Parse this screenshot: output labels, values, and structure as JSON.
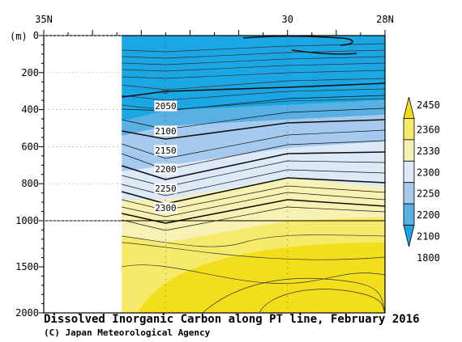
{
  "chart_data": {
    "type": "heatmap",
    "title": "Dissolved Inorganic Carbon along PT line, February 2016",
    "credit": "(C) Japan Meteorological Agency",
    "y_unit_label": "(m)",
    "x_axis": {
      "range": [
        35,
        28
      ],
      "tick_labels": [
        {
          "value": 35,
          "text": "35N"
        },
        {
          "value": 30,
          "text": "30"
        },
        {
          "value": 28,
          "text": "28N"
        }
      ]
    },
    "y_axis": {
      "upper_range_m": [
        0,
        1000
      ],
      "lower_range_m": [
        1000,
        2000
      ],
      "tick_labels": [
        {
          "value": 0,
          "text": "0"
        },
        {
          "value": 200,
          "text": "200"
        },
        {
          "value": 400,
          "text": "400"
        },
        {
          "value": 600,
          "text": "600"
        },
        {
          "value": 800,
          "text": "800"
        },
        {
          "value": 1000,
          "text": "1000"
        },
        {
          "value": 1500,
          "text": "1500"
        },
        {
          "value": 2000,
          "text": "2000"
        }
      ]
    },
    "data_extent_lat": [
      33.4,
      28
    ],
    "contour_labels": [
      {
        "value": "2050",
        "lat": 32.5,
        "depth": 380
      },
      {
        "value": "2100",
        "lat": 32.5,
        "depth": 515
      },
      {
        "value": "2150",
        "lat": 32.5,
        "depth": 620
      },
      {
        "value": "2200",
        "lat": 32.5,
        "depth": 720
      },
      {
        "value": "2250",
        "lat": 32.5,
        "depth": 825
      },
      {
        "value": "2300",
        "lat": 32.5,
        "depth": 930
      }
    ],
    "colorbar": {
      "levels": [
        "2450",
        "2360",
        "2330",
        "2300",
        "2250",
        "2200",
        "2100",
        "1800"
      ],
      "colors": [
        "#f3de1c",
        "#f5ea6a",
        "#f7f2b4",
        "#dde9f7",
        "#a6c9ee",
        "#5aafe3",
        "#1aa7e3"
      ]
    }
  }
}
